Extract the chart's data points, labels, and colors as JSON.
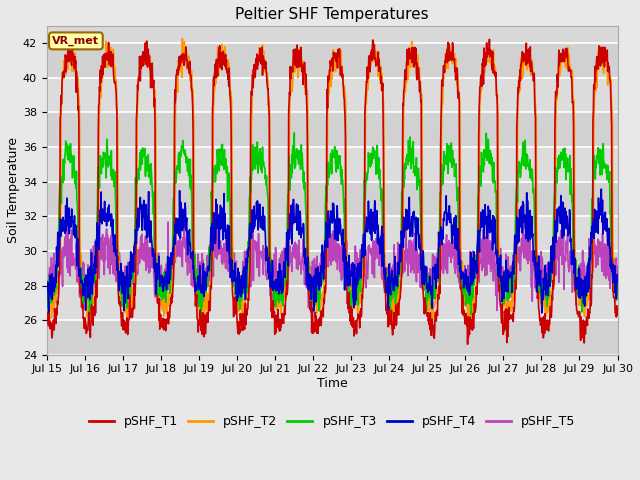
{
  "title": "Peltier SHF Temperatures",
  "xlabel": "Time",
  "ylabel": "Soil Temperature",
  "ylim": [
    24,
    43
  ],
  "xlim": [
    0,
    15
  ],
  "x_tick_labels": [
    "Jul 15",
    "Jul 16",
    "Jul 17",
    "Jul 18",
    "Jul 19",
    "Jul 20",
    "Jul 21",
    "Jul 22",
    "Jul 23",
    "Jul 24",
    "Jul 25",
    "Jul 26",
    "Jul 27",
    "Jul 28",
    "Jul 29",
    "Jul 30"
  ],
  "yticks": [
    24,
    26,
    28,
    30,
    32,
    34,
    36,
    38,
    40,
    42
  ],
  "series_colors": [
    "#cc0000",
    "#ff9900",
    "#00cc00",
    "#0000cc",
    "#bb44bb"
  ],
  "series_labels": [
    "pSHF_T1",
    "pSHF_T2",
    "pSHF_T3",
    "pSHF_T4",
    "pSHF_T5"
  ],
  "annotation_text": "VR_met",
  "background_color": "#e8e8e8",
  "plot_bg_color": "#d8d8d8",
  "grid_color": "#ffffff",
  "title_fontsize": 11,
  "axis_fontsize": 9,
  "tick_fontsize": 8,
  "legend_fontsize": 9,
  "line_width": 1.2
}
